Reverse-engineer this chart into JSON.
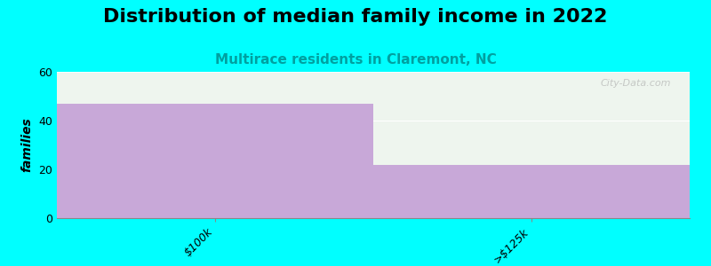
{
  "title": "Distribution of median family income in 2022",
  "subtitle": "Multirace residents in Claremont, NC",
  "categories": [
    "$100k",
    ">$125k"
  ],
  "values": [
    47,
    22
  ],
  "bar_color": "#c8a8d8",
  "bar_edgecolor": "none",
  "background_color": "#00ffff",
  "plot_bg_color": "#eef5ee",
  "ylabel": "families",
  "ylim": [
    0,
    60
  ],
  "yticks": [
    0,
    20,
    40,
    60
  ],
  "title_fontsize": 16,
  "subtitle_fontsize": 11,
  "subtitle_color": "#00a0a0",
  "ylabel_fontsize": 10,
  "tick_labelsize": 9,
  "watermark": "City-Data.com",
  "bar_width": 1.0
}
